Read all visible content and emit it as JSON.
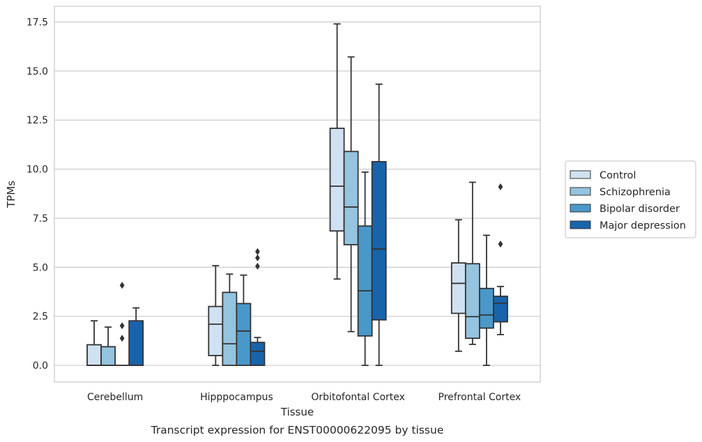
{
  "caption": "Transcript expression for ENST00000622095 by tissue",
  "colors": {
    "grid": "#cccccc",
    "frame": "#cccccc",
    "line": "#333333",
    "series": [
      "#d0e1f2",
      "#94c4df",
      "#4a98c9",
      "#1764ab"
    ]
  },
  "chart_data": {
    "type": "box",
    "xlabel": "Tissue",
    "ylabel": "TPMs",
    "ylim": [
      -0.85,
      18.3
    ],
    "yticks": [
      0.0,
      2.5,
      5.0,
      7.5,
      10.0,
      12.5,
      15.0,
      17.5
    ],
    "ytick_labels": [
      "0.0",
      "2.5",
      "5.0",
      "7.5",
      "10.0",
      "12.5",
      "15.0",
      "17.5"
    ],
    "grid": "horizontal",
    "legend_position": "right",
    "categories": [
      "Cerebellum",
      "Hipppocampus",
      "Orbitofontal Cortex",
      "Prefrontal Cortex"
    ],
    "series": [
      {
        "name": "Control",
        "boxes": [
          {
            "min": 0.0,
            "q1": 0.0,
            "median": 0.0,
            "q3": 1.05,
            "max": 2.27,
            "outliers": []
          },
          {
            "min": 0.0,
            "q1": 0.5,
            "median": 2.1,
            "q3": 3.0,
            "max": 5.08,
            "outliers": []
          },
          {
            "min": 4.4,
            "q1": 6.85,
            "median": 9.13,
            "q3": 12.08,
            "max": 17.4,
            "outliers": []
          },
          {
            "min": 0.72,
            "q1": 2.65,
            "median": 4.18,
            "q3": 5.22,
            "max": 7.42,
            "outliers": []
          }
        ]
      },
      {
        "name": "Schizophrenia",
        "boxes": [
          {
            "min": 0.0,
            "q1": 0.0,
            "median": 0.0,
            "q3": 0.95,
            "max": 1.95,
            "outliers": []
          },
          {
            "min": 0.0,
            "q1": 0.0,
            "median": 1.1,
            "q3": 3.72,
            "max": 4.65,
            "outliers": []
          },
          {
            "min": 1.72,
            "q1": 6.15,
            "median": 8.07,
            "q3": 10.9,
            "max": 15.72,
            "outliers": []
          },
          {
            "min": 1.07,
            "q1": 1.38,
            "median": 2.48,
            "q3": 5.18,
            "max": 9.33,
            "outliers": []
          }
        ]
      },
      {
        "name": "Bipolar disorder",
        "boxes": [
          {
            "min": 0.0,
            "q1": 0.0,
            "median": 0.0,
            "q3": 0.0,
            "max": 0.0,
            "outliers": [
              1.38,
              2.02,
              4.08
            ]
          },
          {
            "min": 0.0,
            "q1": 0.0,
            "median": 1.75,
            "q3": 3.15,
            "max": 4.6,
            "outliers": []
          },
          {
            "min": 0.0,
            "q1": 1.5,
            "median": 3.8,
            "q3": 7.1,
            "max": 9.85,
            "outliers": []
          },
          {
            "min": 0.0,
            "q1": 1.9,
            "median": 2.57,
            "q3": 3.92,
            "max": 6.63,
            "outliers": []
          }
        ]
      },
      {
        "name": "Major depression",
        "boxes": [
          {
            "min": 0.0,
            "q1": 0.0,
            "median": 0.0,
            "q3": 2.27,
            "max": 2.93,
            "outliers": []
          },
          {
            "min": 0.0,
            "q1": 0.0,
            "median": 0.72,
            "q3": 1.17,
            "max": 1.42,
            "outliers": [
              5.05,
              5.48,
              5.8
            ]
          },
          {
            "min": 0.0,
            "q1": 2.32,
            "median": 5.93,
            "q3": 10.38,
            "max": 14.33,
            "outliers": []
          },
          {
            "min": 1.57,
            "q1": 2.22,
            "median": 3.17,
            "q3": 3.52,
            "max": 4.02,
            "outliers": [
              6.18,
              9.1
            ]
          }
        ]
      }
    ]
  }
}
